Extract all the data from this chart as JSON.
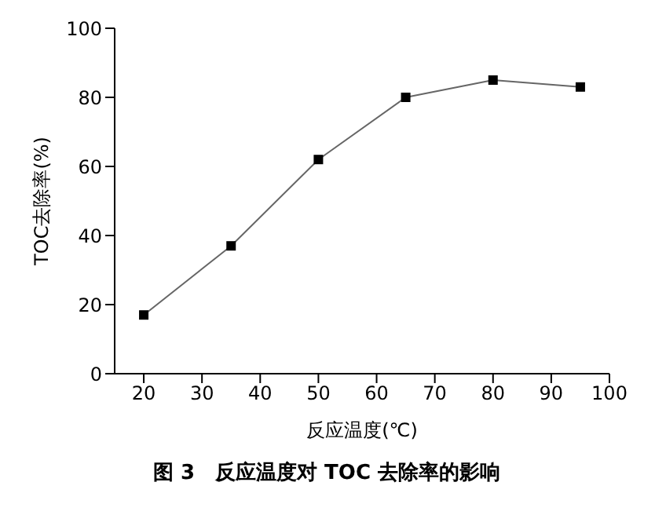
{
  "chart_data": {
    "type": "line",
    "title": "图 3　反应温度对 TOC 去除率的影响",
    "xlabel": "反应温度(℃)",
    "ylabel": "TOC去除率(%)",
    "x": [
      20,
      35,
      50,
      65,
      80,
      95
    ],
    "series": [
      {
        "color": "#666666",
        "values": [
          17,
          37,
          62,
          80,
          85,
          83
        ]
      }
    ],
    "xlim": [
      15,
      100
    ],
    "xticks": [
      20,
      30,
      40,
      50,
      60,
      70,
      80,
      90,
      100
    ],
    "ylim": [
      0,
      100
    ],
    "yticks": [
      0,
      20,
      40,
      60,
      80,
      100
    ],
    "marker": "square",
    "line_style": "solid",
    "grid": false,
    "legend": false
  }
}
